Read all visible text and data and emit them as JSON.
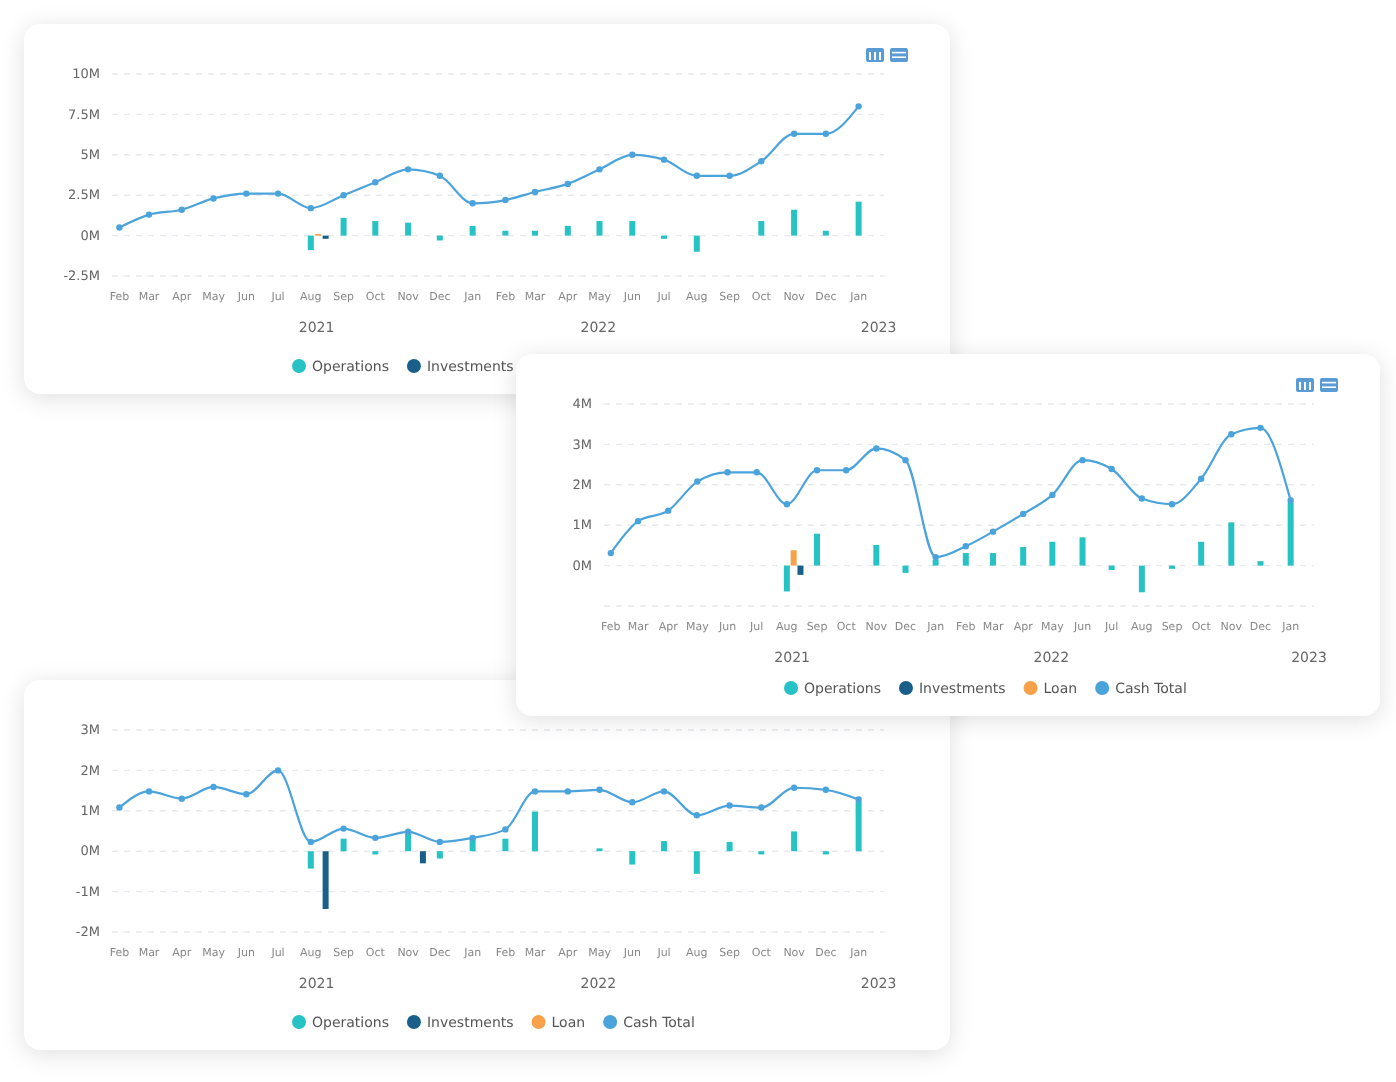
{
  "chart_data": [
    {
      "type": "bar",
      "x": [
        "2021-02",
        "2021-03",
        "2021-04",
        "2021-05",
        "2021-06",
        "2021-07",
        "2021-08",
        "2021-09",
        "2021-10",
        "2021-11",
        "2021-12",
        "2022-01",
        "2022-02",
        "2022-03",
        "2022-04",
        "2022-05",
        "2022-06",
        "2022-07",
        "2022-08",
        "2022-09",
        "2022-10",
        "2022-11",
        "2022-12",
        "2023-01"
      ],
      "xlim": [
        "2021-01-25",
        "2023-01-25"
      ],
      "xticks": [
        {
          "value": "2021-02",
          "label": "Feb"
        },
        {
          "value": "2021-03",
          "label": "Mar"
        },
        {
          "value": "2021-04",
          "label": "Apr"
        },
        {
          "value": "2021-05",
          "label": "May"
        },
        {
          "value": "2021-06",
          "label": "Jun"
        },
        {
          "value": "2021-07",
          "label": "Jul"
        },
        {
          "value": "2021-08",
          "label": "Aug"
        },
        {
          "value": "2021-09",
          "label": "Sep"
        },
        {
          "value": "2021-10",
          "label": "Oct"
        },
        {
          "value": "2021-11",
          "label": "Nov"
        },
        {
          "value": "2021-12",
          "label": "Dec"
        },
        {
          "value": "2022-01",
          "label": "Jan"
        },
        {
          "value": "2022-02",
          "label": "Feb"
        },
        {
          "value": "2022-03",
          "label": "Mar"
        },
        {
          "value": "2022-04",
          "label": "Apr"
        },
        {
          "value": "2022-05",
          "label": "May"
        },
        {
          "value": "2022-06",
          "label": "Jun"
        },
        {
          "value": "2022-07",
          "label": "Jul"
        },
        {
          "value": "2022-08",
          "label": "Aug"
        },
        {
          "value": "2022-09",
          "label": "Sep"
        },
        {
          "value": "2022-10",
          "label": "Oct"
        },
        {
          "value": "2022-11",
          "label": "Nov"
        },
        {
          "value": "2022-12",
          "label": "Dec"
        },
        {
          "value": "2023-01",
          "label": "Jan"
        }
      ],
      "ylim": [
        -2500000,
        10000000
      ],
      "yticks": [
        {
          "value": -2500000,
          "label": "-2.5M"
        },
        {
          "value": 0,
          "label": "0M"
        },
        {
          "value": 2500000,
          "label": "2.5M"
        },
        {
          "value": 5000000,
          "label": "5M"
        },
        {
          "value": 7500000,
          "label": "7.5M"
        },
        {
          "value": 10000000,
          "label": "10M"
        }
      ],
      "grid": "y",
      "legend": "bottom",
      "marker": "circle",
      "annotations": [
        "2021",
        "2022",
        "2023"
      ],
      "series": [
        {
          "name": "Operations",
          "color": "#26c2c4",
          "values": [
            null,
            null,
            null,
            null,
            null,
            null,
            -900000,
            1100000,
            900000,
            800000,
            -300000,
            600000,
            300000,
            300000,
            600000,
            900000,
            900000,
            -200000,
            -1000000,
            null,
            900000,
            1600000,
            300000,
            2100000
          ]
        },
        {
          "name": "Investments",
          "color": "#1a5f8a",
          "values": [
            null,
            null,
            null,
            null,
            null,
            null,
            -200000,
            null,
            null,
            null,
            null,
            null,
            null,
            null,
            null,
            null,
            null,
            null,
            null,
            null,
            null,
            null,
            null,
            null
          ]
        },
        {
          "color": "#f7a24b",
          "values": [
            null,
            null,
            null,
            null,
            null,
            null,
            100000,
            null,
            null,
            null,
            null,
            null,
            null,
            null,
            null,
            null,
            null,
            null,
            null,
            null,
            null,
            null,
            null,
            null
          ]
        },
        {
          "type": "line",
          "color": "#4ba3dc",
          "values": [
            500000,
            1300000,
            1600000,
            2300000,
            2600000,
            2600000,
            1700000,
            2500000,
            3300000,
            4100000,
            3700000,
            2000000,
            2200000,
            2700000,
            3200000,
            4100000,
            5000000,
            4700000,
            3700000,
            3700000,
            4600000,
            6300000,
            6300000,
            8000000
          ]
        }
      ]
    },
    {
      "type": "bar",
      "x": [
        "2021-02",
        "2021-03",
        "2021-04",
        "2021-05",
        "2021-06",
        "2021-07",
        "2021-08",
        "2021-09",
        "2021-10",
        "2021-11",
        "2021-12",
        "2022-01",
        "2022-02",
        "2022-03",
        "2022-04",
        "2022-05",
        "2022-06",
        "2022-07",
        "2022-08",
        "2022-09",
        "2022-10",
        "2022-11",
        "2022-12",
        "2023-01"
      ],
      "xlim": [
        "2021-01-25",
        "2023-01-25"
      ],
      "xticks": [
        {
          "value": "2021-02",
          "label": "Feb"
        },
        {
          "value": "2021-03",
          "label": "Mar"
        },
        {
          "value": "2021-04",
          "label": "Apr"
        },
        {
          "value": "2021-05",
          "label": "May"
        },
        {
          "value": "2021-06",
          "label": "Jun"
        },
        {
          "value": "2021-07",
          "label": "Jul"
        },
        {
          "value": "2021-08",
          "label": "Aug"
        },
        {
          "value": "2021-09",
          "label": "Sep"
        },
        {
          "value": "2021-10",
          "label": "Oct"
        },
        {
          "value": "2021-11",
          "label": "Nov"
        },
        {
          "value": "2021-12",
          "label": "Dec"
        },
        {
          "value": "2022-01",
          "label": "Jan"
        },
        {
          "value": "2022-02",
          "label": "Feb"
        },
        {
          "value": "2022-03",
          "label": "Mar"
        },
        {
          "value": "2022-04",
          "label": "Apr"
        },
        {
          "value": "2022-05",
          "label": "May"
        },
        {
          "value": "2022-06",
          "label": "Jun"
        },
        {
          "value": "2022-07",
          "label": "Jul"
        },
        {
          "value": "2022-08",
          "label": "Aug"
        },
        {
          "value": "2022-09",
          "label": "Sep"
        },
        {
          "value": "2022-10",
          "label": "Oct"
        },
        {
          "value": "2022-11",
          "label": "Nov"
        },
        {
          "value": "2022-12",
          "label": "Dec"
        },
        {
          "value": "2023-01",
          "label": "Jan"
        }
      ],
      "ylim": [
        -1000000,
        4000000
      ],
      "yticks": [
        {
          "value": -1000000,
          "label": null
        },
        {
          "value": 0,
          "label": "0M"
        },
        {
          "value": 1000000,
          "label": "1M"
        },
        {
          "value": 2000000,
          "label": "2M"
        },
        {
          "value": 3000000,
          "label": "3M"
        },
        {
          "value": 4000000,
          "label": "4M"
        }
      ],
      "grid": "y",
      "legend": "bottom",
      "marker": "circle",
      "annotations": [
        "2021",
        "2022",
        "2023"
      ],
      "series": [
        {
          "name": "Operations",
          "color": "#26c2c4",
          "values": [
            null,
            null,
            null,
            null,
            null,
            null,
            -640000,
            790000,
            null,
            510000,
            -180000,
            150000,
            310000,
            310000,
            460000,
            590000,
            700000,
            -110000,
            -660000,
            -80000,
            590000,
            1070000,
            110000,
            1560000
          ]
        },
        {
          "name": "Investments",
          "color": "#1a5f8a",
          "values": [
            null,
            null,
            null,
            null,
            null,
            null,
            -230000,
            null,
            null,
            null,
            null,
            null,
            null,
            null,
            null,
            null,
            null,
            null,
            null,
            null,
            null,
            null,
            null,
            null
          ]
        },
        {
          "name": "Loan",
          "color": "#f7a24b",
          "values": [
            null,
            null,
            null,
            null,
            null,
            null,
            380000,
            null,
            null,
            null,
            null,
            null,
            null,
            null,
            null,
            null,
            null,
            null,
            null,
            null,
            null,
            null,
            null,
            null
          ]
        },
        {
          "name": "Cash Total",
          "type": "line",
          "color": "#4ba3dc",
          "values": [
            310000,
            1100000,
            1360000,
            2080000,
            2310000,
            2310000,
            1520000,
            2360000,
            2360000,
            2900000,
            2610000,
            210000,
            480000,
            840000,
            1280000,
            1750000,
            2610000,
            2390000,
            1660000,
            1520000,
            2150000,
            3250000,
            3410000,
            1610000
          ]
        }
      ]
    },
    {
      "type": "bar",
      "x": [
        "2021-02",
        "2021-03",
        "2021-04",
        "2021-05",
        "2021-06",
        "2021-07",
        "2021-08",
        "2021-09",
        "2021-10",
        "2021-11",
        "2021-12",
        "2022-01",
        "2022-02",
        "2022-03",
        "2022-04",
        "2022-05",
        "2022-06",
        "2022-07",
        "2022-08",
        "2022-09",
        "2022-10",
        "2022-11",
        "2022-12",
        "2023-01"
      ],
      "xlim": [
        "2021-01-25",
        "2023-01-25"
      ],
      "xticks": [
        {
          "value": "2021-02",
          "label": "Feb"
        },
        {
          "value": "2021-03",
          "label": "Mar"
        },
        {
          "value": "2021-04",
          "label": "Apr"
        },
        {
          "value": "2021-05",
          "label": "May"
        },
        {
          "value": "2021-06",
          "label": "Jun"
        },
        {
          "value": "2021-07",
          "label": "Jul"
        },
        {
          "value": "2021-08",
          "label": "Aug"
        },
        {
          "value": "2021-09",
          "label": "Sep"
        },
        {
          "value": "2021-10",
          "label": "Oct"
        },
        {
          "value": "2021-11",
          "label": "Nov"
        },
        {
          "value": "2021-12",
          "label": "Dec"
        },
        {
          "value": "2022-01",
          "label": "Jan"
        },
        {
          "value": "2022-02",
          "label": "Feb"
        },
        {
          "value": "2022-03",
          "label": "Mar"
        },
        {
          "value": "2022-04",
          "label": "Apr"
        },
        {
          "value": "2022-05",
          "label": "May"
        },
        {
          "value": "2022-06",
          "label": "Jun"
        },
        {
          "value": "2022-07",
          "label": "Jul"
        },
        {
          "value": "2022-08",
          "label": "Aug"
        },
        {
          "value": "2022-09",
          "label": "Sep"
        },
        {
          "value": "2022-10",
          "label": "Oct"
        },
        {
          "value": "2022-11",
          "label": "Nov"
        },
        {
          "value": "2022-12",
          "label": "Dec"
        },
        {
          "value": "2023-01",
          "label": "Jan"
        }
      ],
      "ylim": [
        -2000000,
        3000000
      ],
      "yticks": [
        {
          "value": -2000000,
          "label": "-2M"
        },
        {
          "value": -1000000,
          "label": "-1M"
        },
        {
          "value": 0,
          "label": "0M"
        },
        {
          "value": 1000000,
          "label": "1M"
        },
        {
          "value": 2000000,
          "label": "2M"
        },
        {
          "value": 3000000,
          "label": "3M"
        }
      ],
      "grid": "y",
      "legend": "bottom",
      "marker": "circle",
      "annotations": [
        "2021",
        "2022",
        "2023"
      ],
      "series": [
        {
          "name": "Operations",
          "color": "#26c2c4",
          "values": [
            null,
            null,
            null,
            null,
            null,
            null,
            -430000,
            310000,
            -80000,
            430000,
            -180000,
            340000,
            310000,
            980000,
            null,
            70000,
            -330000,
            250000,
            -560000,
            230000,
            -80000,
            490000,
            -80000,
            1230000
          ]
        },
        {
          "name": "Investments",
          "color": "#1a5f8a",
          "values": [
            null,
            null,
            null,
            null,
            null,
            null,
            -1430000,
            null,
            null,
            -300000,
            null,
            null,
            null,
            null,
            null,
            null,
            null,
            null,
            null,
            null,
            null,
            null,
            null,
            null
          ]
        },
        {
          "name": "Loan",
          "color": "#f7a24b",
          "values": [
            null,
            null,
            null,
            null,
            null,
            null,
            null,
            null,
            null,
            null,
            null,
            null,
            null,
            null,
            null,
            null,
            null,
            null,
            null,
            null,
            null,
            null,
            null,
            null
          ]
        },
        {
          "name": "Cash Total",
          "type": "line",
          "color": "#4ba3dc",
          "values": [
            1080000,
            1480000,
            1300000,
            1590000,
            1410000,
            2000000,
            230000,
            560000,
            330000,
            480000,
            230000,
            330000,
            540000,
            1480000,
            1480000,
            1520000,
            1210000,
            1480000,
            890000,
            1130000,
            1080000,
            1570000,
            1520000,
            1280000
          ]
        }
      ]
    }
  ]
}
